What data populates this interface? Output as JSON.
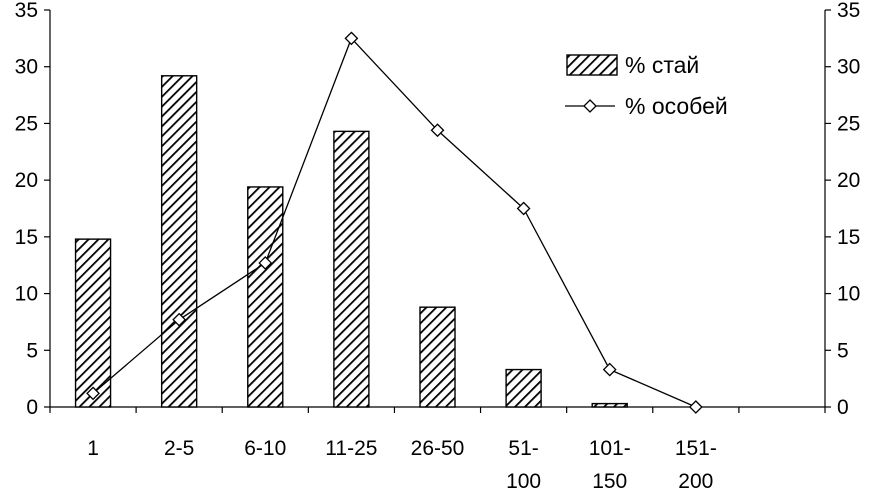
{
  "chart_data": {
    "type": "bar",
    "title": "",
    "xlabel": "",
    "ylabel": "",
    "ylim": [
      0,
      35
    ],
    "y2lim": [
      0,
      35
    ],
    "yticks": [
      "0",
      "5",
      "10",
      "15",
      "20",
      "25",
      "30",
      "35"
    ],
    "categories": [
      [
        "1"
      ],
      [
        "2-5"
      ],
      [
        "6-10"
      ],
      [
        "11-25"
      ],
      [
        "26-50"
      ],
      [
        "51-",
        "100"
      ],
      [
        "101-",
        "150"
      ],
      [
        "151-",
        "200"
      ],
      [
        ""
      ]
    ],
    "series": [
      {
        "name": "% стай",
        "type": "bar",
        "axis": "left",
        "values": [
          14.8,
          29.2,
          19.4,
          24.3,
          8.8,
          3.3,
          0.3,
          0,
          null
        ]
      },
      {
        "name": "% особей",
        "type": "line",
        "marker": "diamond",
        "axis": "right",
        "values": [
          1.2,
          7.7,
          12.7,
          32.5,
          24.4,
          17.5,
          3.3,
          0.0,
          null
        ]
      }
    ],
    "legend": {
      "position": "top-right",
      "entries": [
        "% стай",
        "% особей"
      ]
    },
    "grid": false
  }
}
